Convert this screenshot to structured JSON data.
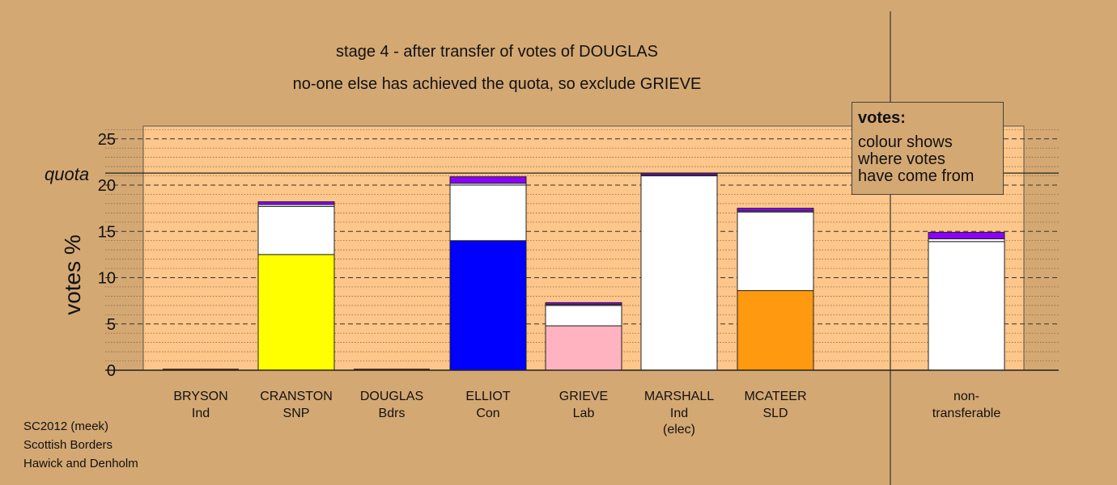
{
  "titles": {
    "line1": "stage 4 - after transfer of votes of DOUGLAS",
    "line2": "no-one else has achieved the quota, so exclude GRIEVE"
  },
  "footer": {
    "line1": "SC2012 (meek)",
    "line2": "Scottish Borders",
    "line3": "Hawick and Denholm"
  },
  "legend": {
    "title": "votes:",
    "text": "colour shows\nwhere votes\nhave come from"
  },
  "colors": {
    "background": "#d4a873",
    "plot_area": "#fdc68a",
    "transfer_white": "#ffffff",
    "transfer_purple": "#8b00ff",
    "cranston": "#ffff00",
    "elliot": "#0000ff",
    "grieve": "#ffb3c1",
    "mcateer": "#ff9910"
  },
  "chart_data": {
    "type": "bar",
    "stacked": true,
    "ylabel": "votes %",
    "ylim": [
      0,
      26
    ],
    "yticks": [
      0,
      5,
      10,
      15,
      20,
      25
    ],
    "quota": 21.3,
    "quota_label": "quota",
    "grid": true,
    "candidates": [
      {
        "name": "BRYSON",
        "party": "Ind",
        "extra": "",
        "segments": []
      },
      {
        "name": "CRANSTON",
        "party": "SNP",
        "extra": "",
        "segments": [
          {
            "value": 12.5,
            "color": "#ffff00"
          },
          {
            "value": 5.2,
            "color": "#ffffff"
          },
          {
            "value": 0.2,
            "color": "#ffffff"
          },
          {
            "value": 0.3,
            "color": "#8b00ff"
          }
        ]
      },
      {
        "name": "DOUGLAS",
        "party": "Bdrs",
        "extra": "",
        "segments": []
      },
      {
        "name": "ELLIOT",
        "party": "Con",
        "extra": "",
        "segments": [
          {
            "value": 14.0,
            "color": "#0000ff"
          },
          {
            "value": 6.0,
            "color": "#ffffff"
          },
          {
            "value": 0.2,
            "color": "#ffffff"
          },
          {
            "value": 0.7,
            "color": "#8b00ff"
          }
        ]
      },
      {
        "name": "GRIEVE",
        "party": "Lab",
        "extra": "",
        "segments": [
          {
            "value": 4.8,
            "color": "#ffb3c1"
          },
          {
            "value": 2.2,
            "color": "#ffffff"
          },
          {
            "value": 0.1,
            "color": "#ffffff"
          },
          {
            "value": 0.2,
            "color": "#8b00ff"
          }
        ]
      },
      {
        "name": "MARSHALL",
        "party": "Ind",
        "extra": "(elec)",
        "segments": [
          {
            "value": 21.0,
            "color": "#ffffff"
          },
          {
            "value": 0.1,
            "color": "#ffffff"
          },
          {
            "value": 0.2,
            "color": "#8b00ff"
          }
        ]
      },
      {
        "name": "MCATEER",
        "party": "SLD",
        "extra": "",
        "segments": [
          {
            "value": 8.6,
            "color": "#ff9910"
          },
          {
            "value": 8.5,
            "color": "#ffffff"
          },
          {
            "value": 0.1,
            "color": "#ffffff"
          },
          {
            "value": 0.3,
            "color": "#8b00ff"
          }
        ]
      }
    ],
    "nontransferable": {
      "name": "non-",
      "party": "transferable",
      "segments": [
        {
          "value": 13.9,
          "color": "#ffffff"
        },
        {
          "value": 0.3,
          "color": "#ffffff"
        },
        {
          "value": 0.7,
          "color": "#8b00ff"
        }
      ]
    }
  }
}
